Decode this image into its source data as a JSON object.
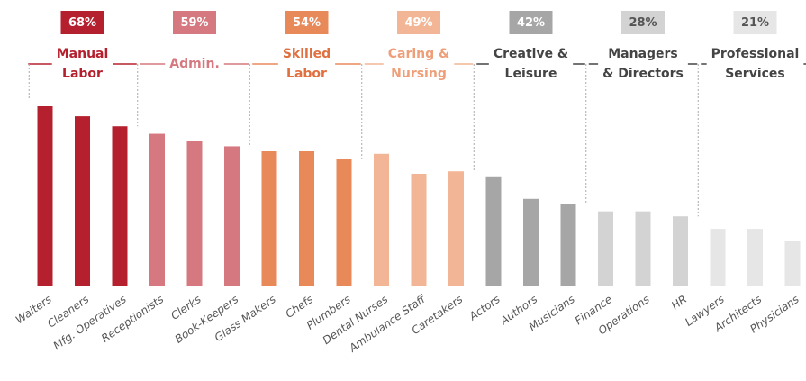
{
  "chart_data": {
    "type": "bar",
    "ylim": [
      0,
      72
    ],
    "groups": [
      {
        "label_lines": [
          "Manual",
          "Labor"
        ],
        "value": 68,
        "value_label": "68%",
        "color": "#b5202e",
        "text_color": "#b5202e",
        "badge_text_color": "#ffffff",
        "categories": [
          "Waiters",
          "Cleaners",
          "Mfg. Operatives"
        ],
        "values": [
          72,
          68,
          64
        ]
      },
      {
        "label_lines": [
          "Admin."
        ],
        "value": 59,
        "value_label": "59%",
        "color": "#d6787f",
        "text_color": "#d6787f",
        "badge_text_color": "#ffffff",
        "categories": [
          "Receptionists",
          "Clerks",
          "Book-Keepers"
        ],
        "values": [
          61,
          58,
          56
        ]
      },
      {
        "label_lines": [
          "Skilled",
          "Labor"
        ],
        "value": 54,
        "value_label": "54%",
        "color": "#e8895a",
        "text_color": "#e07040",
        "badge_text_color": "#ffffff",
        "categories": [
          "Glass Makers",
          "Chefs",
          "Plumbers"
        ],
        "values": [
          54,
          54,
          51
        ]
      },
      {
        "label_lines": [
          "Caring &",
          "Nursing"
        ],
        "value": 49,
        "value_label": "49%",
        "color": "#f2b696",
        "text_color": "#ee9e78",
        "badge_text_color": "#ffffff",
        "categories": [
          "Dental Nurses",
          "Ambulance Staff",
          "Caretakers"
        ],
        "values": [
          53,
          45,
          46
        ]
      },
      {
        "label_lines": [
          "Creative &",
          "Leisure"
        ],
        "value": 42,
        "value_label": "42%",
        "color": "#a6a6a6",
        "text_color": "#444444",
        "badge_text_color": "#ffffff",
        "categories": [
          "Actors",
          "Authors",
          "Musicians"
        ],
        "values": [
          44,
          35,
          33
        ]
      },
      {
        "label_lines": [
          "Managers",
          "& Directors"
        ],
        "value": 28,
        "value_label": "28%",
        "color": "#d3d3d3",
        "text_color": "#444444",
        "badge_text_color": "#555555",
        "categories": [
          "Finance",
          "Operations",
          "HR"
        ],
        "values": [
          30,
          30,
          28
        ]
      },
      {
        "label_lines": [
          "Professional",
          "Services"
        ],
        "value": 21,
        "value_label": "21%",
        "color": "#e6e6e6",
        "text_color": "#444444",
        "badge_text_color": "#555555",
        "categories": [
          "Lawyers",
          "Architects",
          "Physicians"
        ],
        "values": [
          23,
          23,
          18
        ]
      }
    ]
  }
}
